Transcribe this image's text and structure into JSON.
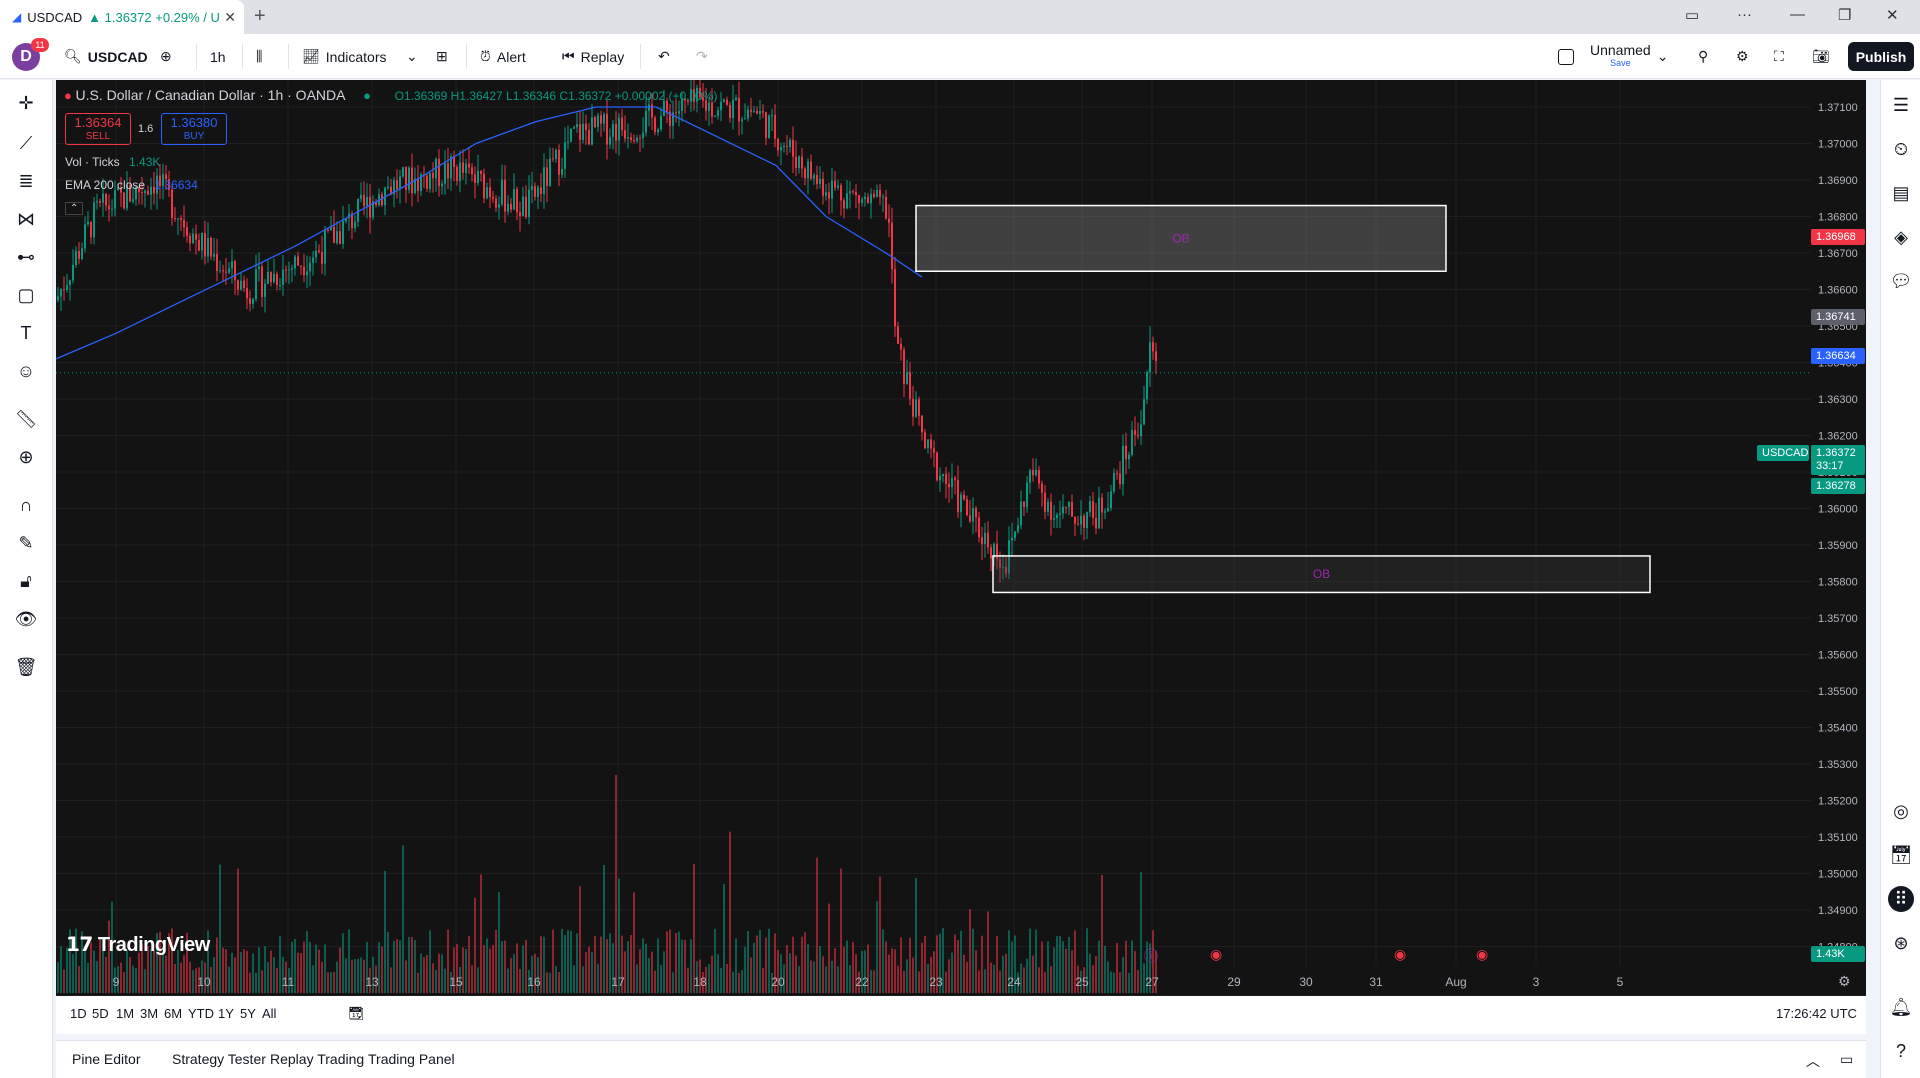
{
  "browser": {
    "tab_title": "USDCAD ▲ 1.36372 +0.29% / U",
    "tab_symbol": "USDCAD",
    "tab_change": "▲ 1.36372 +0.29% / U"
  },
  "toolbar": {
    "avatar_letter": "D",
    "notification_count": "11",
    "symbol": "USDCAD",
    "interval": "1h",
    "indicators_label": "Indicators",
    "alert_label": "Alert",
    "replay_label": "Replay",
    "layout_name": "Unnamed",
    "layout_save": "Save",
    "publish_label": "Publish"
  },
  "legend": {
    "title": "U.S. Dollar / Canadian Dollar · 1h · OANDA",
    "ohlc": "O1.36369 H1.36427 L1.36346 C1.36372 +0.00002 (+0.00%)",
    "sell_price": "1.36364",
    "sell_label": "SELL",
    "spread": "1.6",
    "buy_price": "1.36380",
    "buy_label": "BUY",
    "vol_label": "Vol · Ticks",
    "vol_value": "1.43K",
    "ema_label": "EMA 200 close",
    "ema_value": "1.36634"
  },
  "chart_data": {
    "type": "candlestick",
    "symbol": "USDCAD",
    "timeframe": "1h",
    "price_ticks": [
      "1.37100",
      "1.37000",
      "1.36900",
      "1.36800",
      "1.36700",
      "1.36600",
      "1.36500",
      "1.36400",
      "1.36300",
      "1.36200",
      "1.36100",
      "1.36000",
      "1.35900",
      "1.35800",
      "1.35700",
      "1.35600",
      "1.35500",
      "1.35400",
      "1.35300",
      "1.35200",
      "1.35100",
      "1.35000",
      "1.34900",
      "1.34800"
    ],
    "ylim": [
      1.348,
      1.372
    ],
    "x_ticks": [
      "9",
      "10",
      "11",
      "13",
      "15",
      "16",
      "17",
      "18",
      "20",
      "22",
      "23",
      "24",
      "25",
      "27",
      "29",
      "30",
      "31",
      "Aug",
      "3",
      "5"
    ],
    "price_badges": {
      "high_red": "1.36968",
      "zone_level": "1.36741",
      "ema": "1.36634",
      "symbol": "USDCAD",
      "last": "1.36372",
      "countdown": "33:17",
      "green_level": "1.36278",
      "volume": "1.43K"
    },
    "zones": [
      {
        "label": "OB",
        "top": 1.3683,
        "bottom": 1.3665,
        "start_day": "22",
        "end_day": "29"
      },
      {
        "label": "OB",
        "top": 1.3587,
        "bottom": 1.3577,
        "start_day": "23",
        "end_day": "31"
      }
    ],
    "ema_path": [
      [
        0,
        1.3641
      ],
      [
        60,
        1.3648
      ],
      [
        120,
        1.3656
      ],
      [
        180,
        1.3664
      ],
      [
        240,
        1.3672
      ],
      [
        300,
        1.3681
      ],
      [
        360,
        1.369
      ],
      [
        420,
        1.37
      ],
      [
        480,
        1.3706
      ],
      [
        540,
        1.371
      ],
      [
        600,
        1.371
      ],
      [
        660,
        1.3702
      ],
      [
        720,
        1.3694
      ],
      [
        770,
        1.368
      ],
      [
        830,
        1.367
      ],
      [
        866,
        1.36634
      ]
    ],
    "volume_unit": "Ticks"
  },
  "range_bar": {
    "ranges": [
      "1D",
      "5D",
      "1M",
      "3M",
      "6M",
      "YTD",
      "1Y",
      "5Y",
      "All"
    ],
    "clock": "17:26:42 UTC"
  },
  "panels": [
    "Pine Editor",
    "Strategy Tester",
    "Replay Trading",
    "Trading Panel"
  ],
  "branding": "TradingView"
}
